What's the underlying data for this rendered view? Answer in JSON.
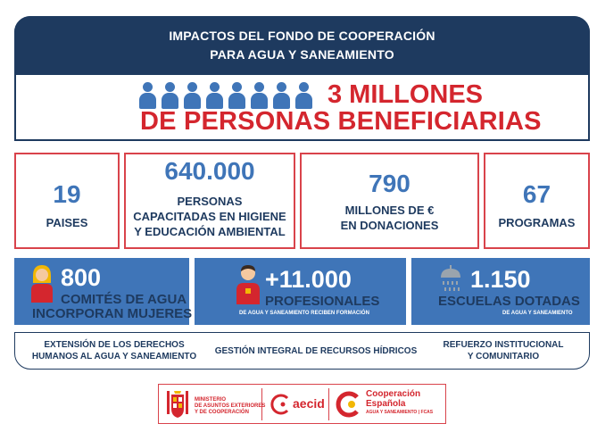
{
  "header": {
    "line1": "IMPACTOS DEL FONDO DE COOPERACIÓN",
    "line2": "PARA AGUA Y SANEAMIENTO"
  },
  "hero": {
    "line1": "3 MILLONES",
    "line2": "DE PERSONAS BENEFICIARIAS",
    "people_icon": "person-icon",
    "people_count": 8
  },
  "stats": [
    {
      "value": "19",
      "label": "PAISES"
    },
    {
      "value": "640.000",
      "label_line1": "PERSONAS",
      "label_line2": "CAPACITADAS EN HIGIENE",
      "label_line3": "Y EDUCACIÓN AMBIENTAL"
    },
    {
      "value": "790",
      "label_line1": "MILLONES DE €",
      "label_line2": "EN DONACIONES"
    },
    {
      "value": "67",
      "label": "PROGRAMAS"
    }
  ],
  "highlights": [
    {
      "icon": "woman-icon",
      "value": "800",
      "line1": "COMITÉS DE AGUA",
      "line2": "INCORPORAN MUJERES"
    },
    {
      "icon": "professional-icon",
      "value": "+11.000",
      "line1": "PROFESIONALES",
      "small": "DE AGUA Y SANEAMIENTO RECIBEN FORMACIÓN"
    },
    {
      "icon": "shower-icon",
      "value": "1.150",
      "line1": "ESCUELAS DOTADAS",
      "small": "DE AGUA Y SANEAMIENTO"
    }
  ],
  "pillars": [
    {
      "line1": "EXTENSIÓN DE LOS DERECHOS",
      "line2": "HUMANOS AL AGUA Y SANEAMIENTO"
    },
    {
      "line1": "GESTIÓN INTEGRAL DE RECURSOS HÍDRICOS"
    },
    {
      "line1": "REFUERZO INSTITUCIONAL",
      "line2": "Y COMUNITARIO"
    }
  ],
  "logos": {
    "ministerio": {
      "icon": "coat-of-arms-icon",
      "line1": "MINISTERIO",
      "line2": "DE ASUNTOS EXTERIORES",
      "line3": "Y DE COOPERACIÓN"
    },
    "aecid": {
      "icon": "aecid-logo-icon",
      "name": "aecid"
    },
    "cooperacion": {
      "icon": "cooperacion-logo-icon",
      "line1": "Cooperación",
      "line2": "Española",
      "line3": "AGUA Y SANEAMIENTO",
      "line3b": "FCAS"
    }
  },
  "colors": {
    "navy": "#1e3a5f",
    "blue": "#3f75b8",
    "red": "#d4262e",
    "yellow": "#f2b705"
  }
}
